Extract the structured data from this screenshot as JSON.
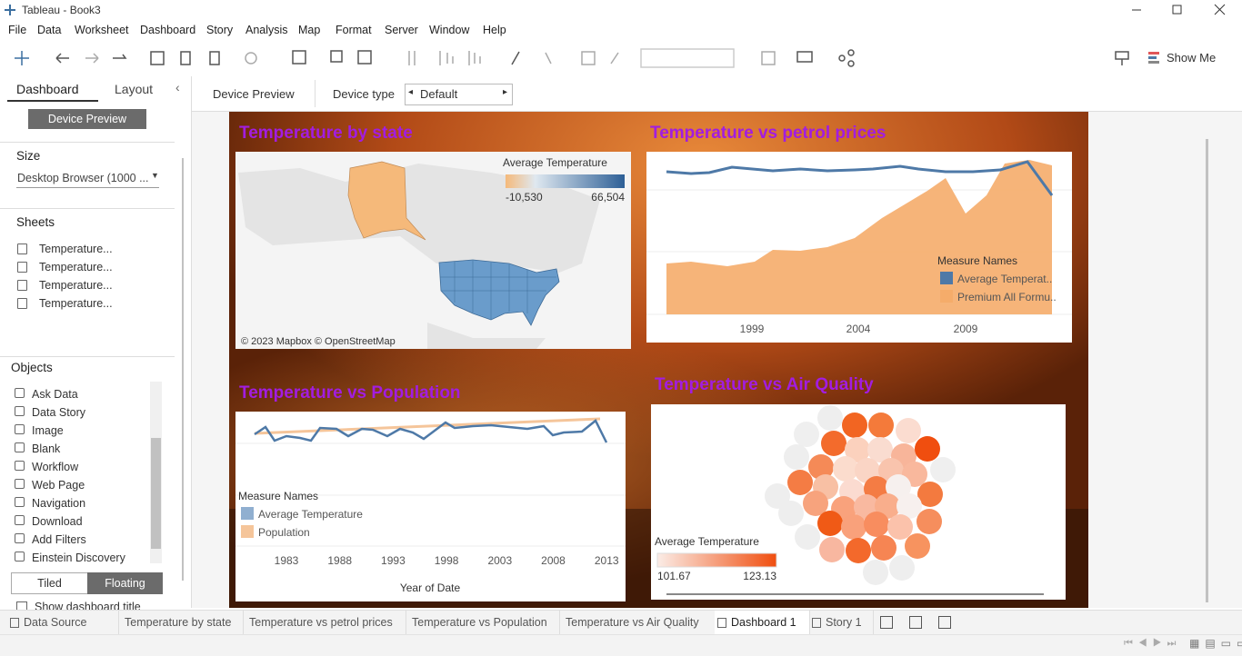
{
  "window": {
    "title": "Tableau - Book3"
  },
  "menu": [
    "File",
    "Data",
    "Worksheet",
    "Dashboard",
    "Story",
    "Analysis",
    "Map",
    "Format",
    "Server",
    "Window",
    "Help"
  ],
  "toolbar": {
    "show_me": "Show Me"
  },
  "left_panel": {
    "tabs": [
      "Dashboard",
      "Layout"
    ],
    "device_preview": "Device Preview",
    "size": {
      "heading": "Size",
      "value": "Desktop Browser (1000 ..."
    },
    "sheets": {
      "heading": "Sheets",
      "items": [
        "Temperature...",
        "Temperature...",
        "Temperature...",
        "Temperature..."
      ]
    },
    "objects": {
      "heading": "Objects",
      "items": [
        "Ask Data",
        "Data Story",
        "Image",
        "Blank",
        "Workflow",
        "Web Page",
        "Navigation",
        "Download",
        "Add Filters",
        "Einstein Discovery"
      ]
    },
    "layout_toggle": [
      "Tiled",
      "Floating"
    ],
    "show_title": "Show dashboard title"
  },
  "device_bar": {
    "device_preview": "Device Preview",
    "device_type_label": "Device type",
    "device_type": "Default"
  },
  "dashboard": {
    "map": {
      "title": "Temperature by state",
      "legend_title": "Average Temperature",
      "legend_min": "-10,530",
      "legend_max": "66,504",
      "attribution": "© 2023 Mapbox © OpenStreetMap"
    },
    "petrol": {
      "title": "Temperature vs petrol prices",
      "x_labels": [
        "1999",
        "2004",
        "2009"
      ],
      "legend_title": "Measure Names",
      "legend_items": [
        "Average Temperat..",
        "Premium All Formu.."
      ]
    },
    "population": {
      "title": "Temperature vs Population",
      "legend_title": "Measure Names",
      "legend_items": [
        "Average Temperature",
        "Population"
      ],
      "x_labels": [
        "1983",
        "1988",
        "1993",
        "1998",
        "2003",
        "2008",
        "2013"
      ],
      "x_axis_title": "Year of Date"
    },
    "air": {
      "title": "Temperature vs Air Quality",
      "legend_title": "Average Temperature",
      "legend_min": "101.67",
      "legend_max": "123.13"
    }
  },
  "tabs": [
    "Data Source",
    "Temperature by state",
    "Temperature vs petrol prices",
    "Temperature vs Population",
    "Temperature vs Air Quality",
    "Dashboard 1",
    "Story 1"
  ]
}
